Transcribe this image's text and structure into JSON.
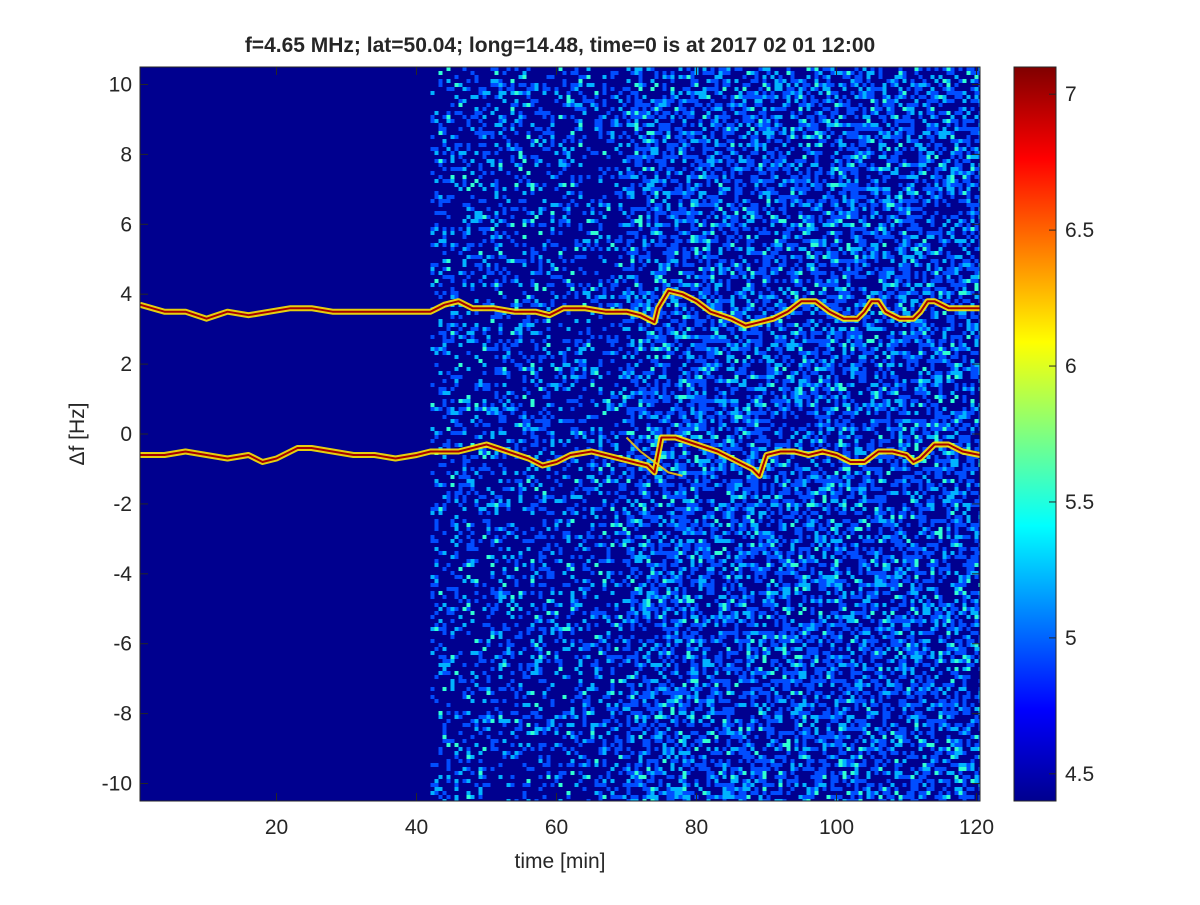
{
  "chart_data": {
    "type": "heatmap",
    "title": "f=4.65 MHz;  lat=50.04; long=14.48, time=0 is at 2017 02 01 12:00",
    "xlabel": "time [min]",
    "ylabel": "Δf [Hz]",
    "xlim": [
      0.5,
      120.5
    ],
    "ylim": [
      -10.5,
      10.5
    ],
    "x_ticks": [
      20,
      40,
      60,
      80,
      100,
      120
    ],
    "y_ticks": [
      -10,
      -8,
      -6,
      -4,
      -2,
      0,
      2,
      4,
      6,
      8,
      10
    ],
    "colormap": "jet",
    "colorbar": {
      "min": 4.4,
      "max": 7.1,
      "ticks": [
        4.5,
        5,
        5.5,
        6,
        6.5,
        7
      ]
    },
    "grid": false,
    "background_level": 4.4,
    "noise_regions": [
      {
        "time": [
          0.5,
          42
        ],
        "freq": [
          -10.5,
          10.5
        ],
        "level": "low"
      },
      {
        "time": [
          42,
          70
        ],
        "freq": [
          -10.5,
          10.5
        ],
        "level": "medium"
      },
      {
        "time": [
          70,
          120.5
        ],
        "freq": [
          -10.5,
          10.5
        ],
        "level": "high"
      }
    ],
    "series": [
      {
        "peak_level": 7.0,
        "x": [
          0.5,
          4,
          7,
          10,
          13,
          16,
          19,
          22,
          25,
          28,
          32,
          36,
          40,
          42,
          44,
          46,
          48,
          51,
          54,
          57,
          59,
          61,
          64,
          67,
          70,
          72,
          73,
          74,
          74.5,
          76,
          78,
          80,
          82,
          85,
          87,
          89,
          91,
          93,
          95,
          97,
          99,
          101,
          103,
          104,
          105,
          106,
          107,
          109,
          111,
          112,
          113,
          114,
          116,
          118,
          120.5
        ],
        "y": [
          3.7,
          3.5,
          3.5,
          3.3,
          3.5,
          3.4,
          3.5,
          3.6,
          3.6,
          3.5,
          3.5,
          3.5,
          3.5,
          3.5,
          3.7,
          3.8,
          3.6,
          3.6,
          3.5,
          3.5,
          3.4,
          3.6,
          3.6,
          3.5,
          3.5,
          3.4,
          3.3,
          3.2,
          3.6,
          4.1,
          4.0,
          3.8,
          3.5,
          3.3,
          3.1,
          3.2,
          3.3,
          3.5,
          3.8,
          3.8,
          3.5,
          3.3,
          3.3,
          3.5,
          3.8,
          3.8,
          3.5,
          3.3,
          3.3,
          3.5,
          3.8,
          3.8,
          3.6,
          3.6,
          3.6
        ]
      },
      {
        "peak_level": 7.0,
        "x": [
          0.5,
          4,
          7,
          10,
          13,
          16,
          18,
          20,
          22,
          23,
          25,
          28,
          31,
          34,
          37,
          40,
          42,
          44,
          46,
          48,
          50,
          53,
          56,
          58,
          60,
          62,
          65,
          67,
          69,
          71,
          73,
          74,
          75,
          77,
          80,
          83,
          86,
          88,
          89,
          90,
          92,
          94,
          96,
          98,
          100,
          102,
          104,
          106,
          108,
          110,
          111,
          112,
          113,
          114,
          116,
          118,
          120.5
        ],
        "y": [
          -0.6,
          -0.6,
          -0.5,
          -0.6,
          -0.7,
          -0.6,
          -0.8,
          -0.7,
          -0.5,
          -0.4,
          -0.4,
          -0.5,
          -0.6,
          -0.6,
          -0.7,
          -0.6,
          -0.5,
          -0.5,
          -0.5,
          -0.4,
          -0.3,
          -0.5,
          -0.7,
          -0.9,
          -0.8,
          -0.6,
          -0.5,
          -0.6,
          -0.7,
          -0.8,
          -0.9,
          -1.1,
          -0.1,
          -0.1,
          -0.3,
          -0.5,
          -0.8,
          -1.0,
          -1.2,
          -0.6,
          -0.5,
          -0.5,
          -0.6,
          -0.5,
          -0.6,
          -0.8,
          -0.8,
          -0.5,
          -0.5,
          -0.6,
          -0.8,
          -0.7,
          -0.5,
          -0.3,
          -0.3,
          -0.5,
          -0.6
        ]
      },
      {
        "peak_level": 6.2,
        "x": [
          70,
          72,
          74,
          76,
          78
        ],
        "y": [
          -0.1,
          -0.5,
          -0.8,
          -1.1,
          -1.2
        ]
      }
    ]
  }
}
